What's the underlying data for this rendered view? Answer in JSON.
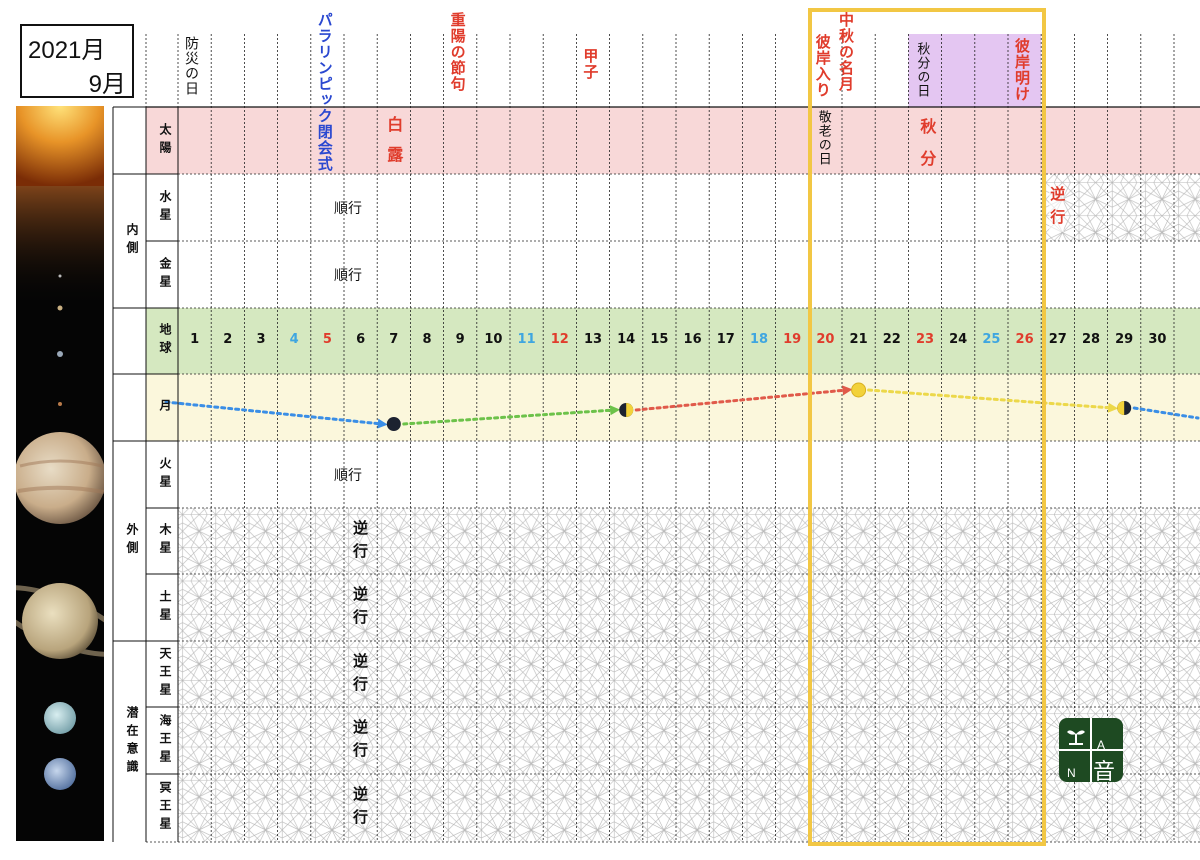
{
  "header": {
    "year": "2021月",
    "month": "9月"
  },
  "colors": {
    "sun_band": "#f8d8d8",
    "earth_band": "#d5e8c0",
    "moon_band": "#fbf7dc",
    "highlight_frame": "#f2c744",
    "purple_band": "#e4c6f2",
    "red": "#e03c2c",
    "blue": "#2a48d0",
    "light_blue": "#3fa6e0",
    "holiday_black": "#111111",
    "pattern": "#b8b8b8"
  },
  "events": [
    {
      "day": 1,
      "text": "防災の日",
      "color": "#111111"
    },
    {
      "day": 5,
      "text": "パラリンピック閉会式",
      "color": "#2a48d0"
    },
    {
      "day": 9,
      "text": "重陽の節句",
      "color": "#e03c2c"
    },
    {
      "day": 13,
      "text": "甲子",
      "color": "#e03c2c"
    },
    {
      "day": 20,
      "text": "彼岸入り",
      "color": "#e03c2c"
    },
    {
      "day": 21,
      "text": "中秋の名月",
      "color": "#e03c2c"
    },
    {
      "day": 23,
      "text": "秋分の日",
      "color": "#111111"
    },
    {
      "day": 26,
      "text": "彼岸明け",
      "color": "#e03c2c"
    }
  ],
  "rows": {
    "sun": "太陽",
    "mercury": "水星",
    "venus": "金星",
    "earth": "地球",
    "moon": "月",
    "mars": "火星",
    "jupiter": "木星",
    "saturn": "土星",
    "uranus": "天王星",
    "neptune": "海王星",
    "pluto": "冥王星"
  },
  "groups": {
    "inner": "内側",
    "outer": "外側",
    "latent": "潜在意識"
  },
  "sun_labels": [
    {
      "day": 7,
      "text": "白露",
      "color": "#e03c2c"
    },
    {
      "day": 20,
      "text": "敬老の日",
      "color": "#111111"
    },
    {
      "day": 23,
      "text": "秋分",
      "color": "#e03c2c"
    }
  ],
  "motion": {
    "mercury": [
      {
        "day": 6,
        "text": "順行"
      },
      {
        "day": 27,
        "text": "逆行"
      }
    ],
    "venus": [
      {
        "day": 6,
        "text": "順行"
      }
    ],
    "mars": [
      {
        "day": 6,
        "text": "順行"
      }
    ],
    "jupiter": [
      {
        "day": 6,
        "text": "逆行"
      }
    ],
    "saturn": [
      {
        "day": 6,
        "text": "逆行"
      }
    ],
    "uranus": [
      {
        "day": 6,
        "text": "逆行"
      }
    ],
    "neptune": [
      {
        "day": 6,
        "text": "逆行"
      }
    ],
    "pluto": [
      {
        "day": 6,
        "text": "逆行"
      }
    ]
  },
  "mercury_retrograde_from": 27,
  "days": [
    {
      "n": "1",
      "c": "#111111"
    },
    {
      "n": "2",
      "c": "#111111"
    },
    {
      "n": "3",
      "c": "#111111"
    },
    {
      "n": "4",
      "c": "#3fa6e0"
    },
    {
      "n": "5",
      "c": "#e03c2c"
    },
    {
      "n": "6",
      "c": "#111111"
    },
    {
      "n": "7",
      "c": "#111111"
    },
    {
      "n": "8",
      "c": "#111111"
    },
    {
      "n": "9",
      "c": "#111111"
    },
    {
      "n": "10",
      "c": "#111111"
    },
    {
      "n": "11",
      "c": "#3fa6e0"
    },
    {
      "n": "12",
      "c": "#e03c2c"
    },
    {
      "n": "13",
      "c": "#111111"
    },
    {
      "n": "14",
      "c": "#111111"
    },
    {
      "n": "15",
      "c": "#111111"
    },
    {
      "n": "16",
      "c": "#111111"
    },
    {
      "n": "17",
      "c": "#111111"
    },
    {
      "n": "18",
      "c": "#3fa6e0"
    },
    {
      "n": "19",
      "c": "#e03c2c"
    },
    {
      "n": "20",
      "c": "#e03c2c"
    },
    {
      "n": "21",
      "c": "#111111"
    },
    {
      "n": "22",
      "c": "#111111"
    },
    {
      "n": "23",
      "c": "#e03c2c"
    },
    {
      "n": "24",
      "c": "#111111"
    },
    {
      "n": "25",
      "c": "#3fa6e0"
    },
    {
      "n": "26",
      "c": "#e03c2c"
    },
    {
      "n": "27",
      "c": "#111111"
    },
    {
      "n": "28",
      "c": "#111111"
    },
    {
      "n": "29",
      "c": "#111111"
    },
    {
      "n": "30",
      "c": "#111111"
    }
  ],
  "moon_phases": [
    {
      "day": 7,
      "phase": "new-moon"
    },
    {
      "day": 14,
      "phase": "first-quarter"
    },
    {
      "day": 21,
      "phase": "full-moon"
    },
    {
      "day": 29,
      "phase": "last-quarter"
    }
  ],
  "moon_arrows": [
    {
      "from": 0,
      "to": 7,
      "color": "#3a8ee6"
    },
    {
      "from": 7,
      "to": 14,
      "color": "#6cc24a"
    },
    {
      "from": 14,
      "to": 21,
      "color": "#e05a4a"
    },
    {
      "from": 21,
      "to": 29,
      "color": "#ecd84a"
    },
    {
      "from": 29,
      "to": 31,
      "color": "#3a8ee6"
    }
  ],
  "logo": {
    "a": "A",
    "n": "N",
    "kanji": "音"
  }
}
